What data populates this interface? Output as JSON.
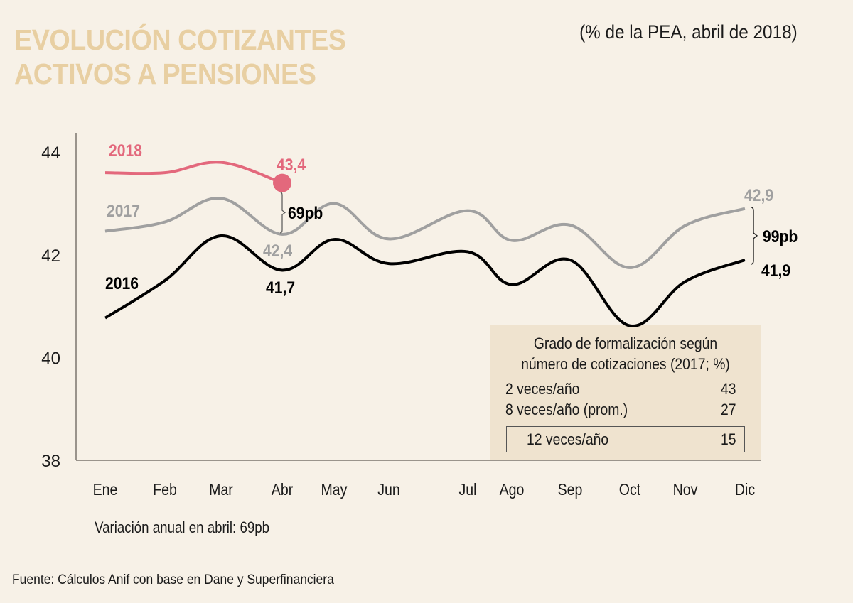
{
  "header": {
    "title_line1": "EVOLUCIÓN COTIZANTES",
    "title_line2": "ACTIVOS A PENSIONES",
    "subtitle": "(% de la PEA, abril de 2018)"
  },
  "note": "Variación anual en abril: 69pb",
  "source": "Fuente: Cálculos Anif con base en Dane y Superfinanciera",
  "colors": {
    "background": "#f7f1e7",
    "title": "#e8cfa2",
    "series_2018": "#e3687c",
    "series_2017": "#a0a0a0",
    "series_2016": "#000000",
    "axis": "#9a948c",
    "inset_bg": "#efe3cf"
  },
  "chart_data": {
    "type": "line",
    "title": "EVOLUCIÓN COTIZANTES ACTIVOS A PENSIONES",
    "subtitle": "(% de la PEA, abril de 2018)",
    "xlabel": "",
    "ylabel": "",
    "ylim": [
      38,
      44
    ],
    "yticks": [
      "38",
      "40",
      "42",
      "44"
    ],
    "categories": [
      "Ene",
      "Feb",
      "Mar",
      "Abr",
      "May",
      "Jun",
      "Jul",
      "Ago",
      "Sep",
      "Oct",
      "Nov",
      "Dic"
    ],
    "grid": false,
    "series": [
      {
        "name": "2018",
        "values": [
          43.6,
          43.6,
          43.8,
          43.4,
          null,
          null,
          null,
          null,
          null,
          null,
          null,
          null
        ]
      },
      {
        "name": "2017",
        "values": [
          42.46,
          42.64,
          43.1,
          42.4,
          43.0,
          42.31,
          42.86,
          42.28,
          42.58,
          41.75,
          42.57,
          42.9
        ]
      },
      {
        "name": "2016",
        "values": [
          40.77,
          41.5,
          42.37,
          41.7,
          42.3,
          41.83,
          42.06,
          41.42,
          41.9,
          40.62,
          41.48,
          41.9
        ]
      }
    ],
    "annotations": {
      "label_2018_value": "43,4",
      "label_2017_abr": "42,4",
      "label_2016_abr": "41,7",
      "label_2017_dic": "42,9",
      "label_2016_dic": "41,9",
      "gap_abr": "69pb",
      "gap_dic": "99pb"
    },
    "legend": "inline-labels"
  },
  "inset": {
    "heading_line1": "Grado de formalización según",
    "heading_line2": "número de cotizaciones (2017; %)",
    "rows": [
      {
        "label": "2 veces/año",
        "value": "43"
      },
      {
        "label": "8 veces/año (prom.)",
        "value": "27"
      },
      {
        "label": "12 veces/año",
        "value": "15"
      }
    ]
  }
}
